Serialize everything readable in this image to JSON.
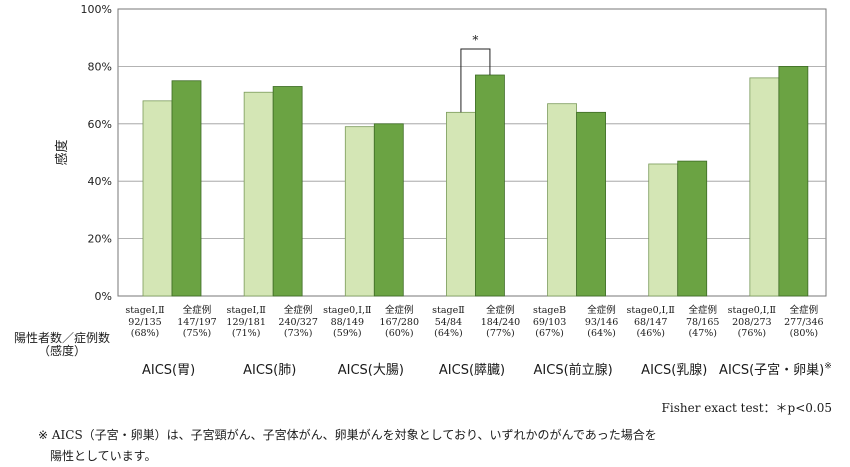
{
  "chart_data": {
    "type": "bar",
    "ylabel": "感度",
    "ylim": [
      0,
      100
    ],
    "yticks": [
      "0%",
      "20%",
      "40%",
      "60%",
      "80%",
      "100%"
    ],
    "grid": true,
    "colors": {
      "stage": "#d4e6b5",
      "all": "#6ba343",
      "stage_edge": "#7a9a5a",
      "all_edge": "#3d6b25"
    },
    "groups": [
      {
        "title": "AICS(胃)",
        "bars": [
          {
            "label": "stageⅠ,Ⅱ",
            "counts": "92/135",
            "pct": "(68%)",
            "value": 68
          },
          {
            "label": "全症例",
            "counts": "147/197",
            "pct": "(75%)",
            "value": 75
          }
        ]
      },
      {
        "title": "AICS(肺)",
        "bars": [
          {
            "label": "stageⅠ,Ⅱ",
            "counts": "129/181",
            "pct": "(71%)",
            "value": 71
          },
          {
            "label": "全症例",
            "counts": "240/327",
            "pct": "(73%)",
            "value": 73
          }
        ]
      },
      {
        "title": "AICS(大腸)",
        "bars": [
          {
            "label": "stage0,Ⅰ,Ⅱ",
            "counts": "88/149",
            "pct": "(59%)",
            "value": 59
          },
          {
            "label": "全症例",
            "counts": "167/280",
            "pct": "(60%)",
            "value": 60
          }
        ]
      },
      {
        "title": "AICS(膵臓)",
        "bars": [
          {
            "label": "stageⅡ",
            "counts": "54/84",
            "pct": "(64%)",
            "value": 64
          },
          {
            "label": "全症例",
            "counts": "184/240",
            "pct": "(77%)",
            "value": 77
          }
        ]
      },
      {
        "title": "AICS(前立腺)",
        "bars": [
          {
            "label": "stageB",
            "counts": "69/103",
            "pct": "(67%)",
            "value": 67
          },
          {
            "label": "全症例",
            "counts": "93/146",
            "pct": "(64%)",
            "value": 64
          }
        ]
      },
      {
        "title": "AICS(乳腺)",
        "bars": [
          {
            "label": "stage0,Ⅰ,Ⅱ",
            "counts": "68/147",
            "pct": "(46%)",
            "value": 46
          },
          {
            "label": "全症例",
            "counts": "78/165",
            "pct": "(47%)",
            "value": 47
          }
        ]
      },
      {
        "title": "AICS(子宮・卵巣)",
        "title_mark": "※",
        "bars": [
          {
            "label": "stage0,Ⅰ,Ⅱ",
            "counts": "208/273",
            "pct": "(76%)",
            "value": 76
          },
          {
            "label": "全症例",
            "counts": "277/346",
            "pct": "(80%)",
            "value": 80
          }
        ]
      }
    ],
    "annotation": {
      "text": "*",
      "group_index": 3
    }
  },
  "row_label": {
    "line1": "陽性者数／症例数",
    "line2": "（感度）"
  },
  "fisher_note": "Fisher exact test：＊p<0.05",
  "footnote": {
    "line1": "※ AICS（子宮・卵巣）は、子宮頸がん、子宮体がん、卵巣がんを対象としており、いずれかのがんであった場合を",
    "line2": "陽性としています。"
  }
}
